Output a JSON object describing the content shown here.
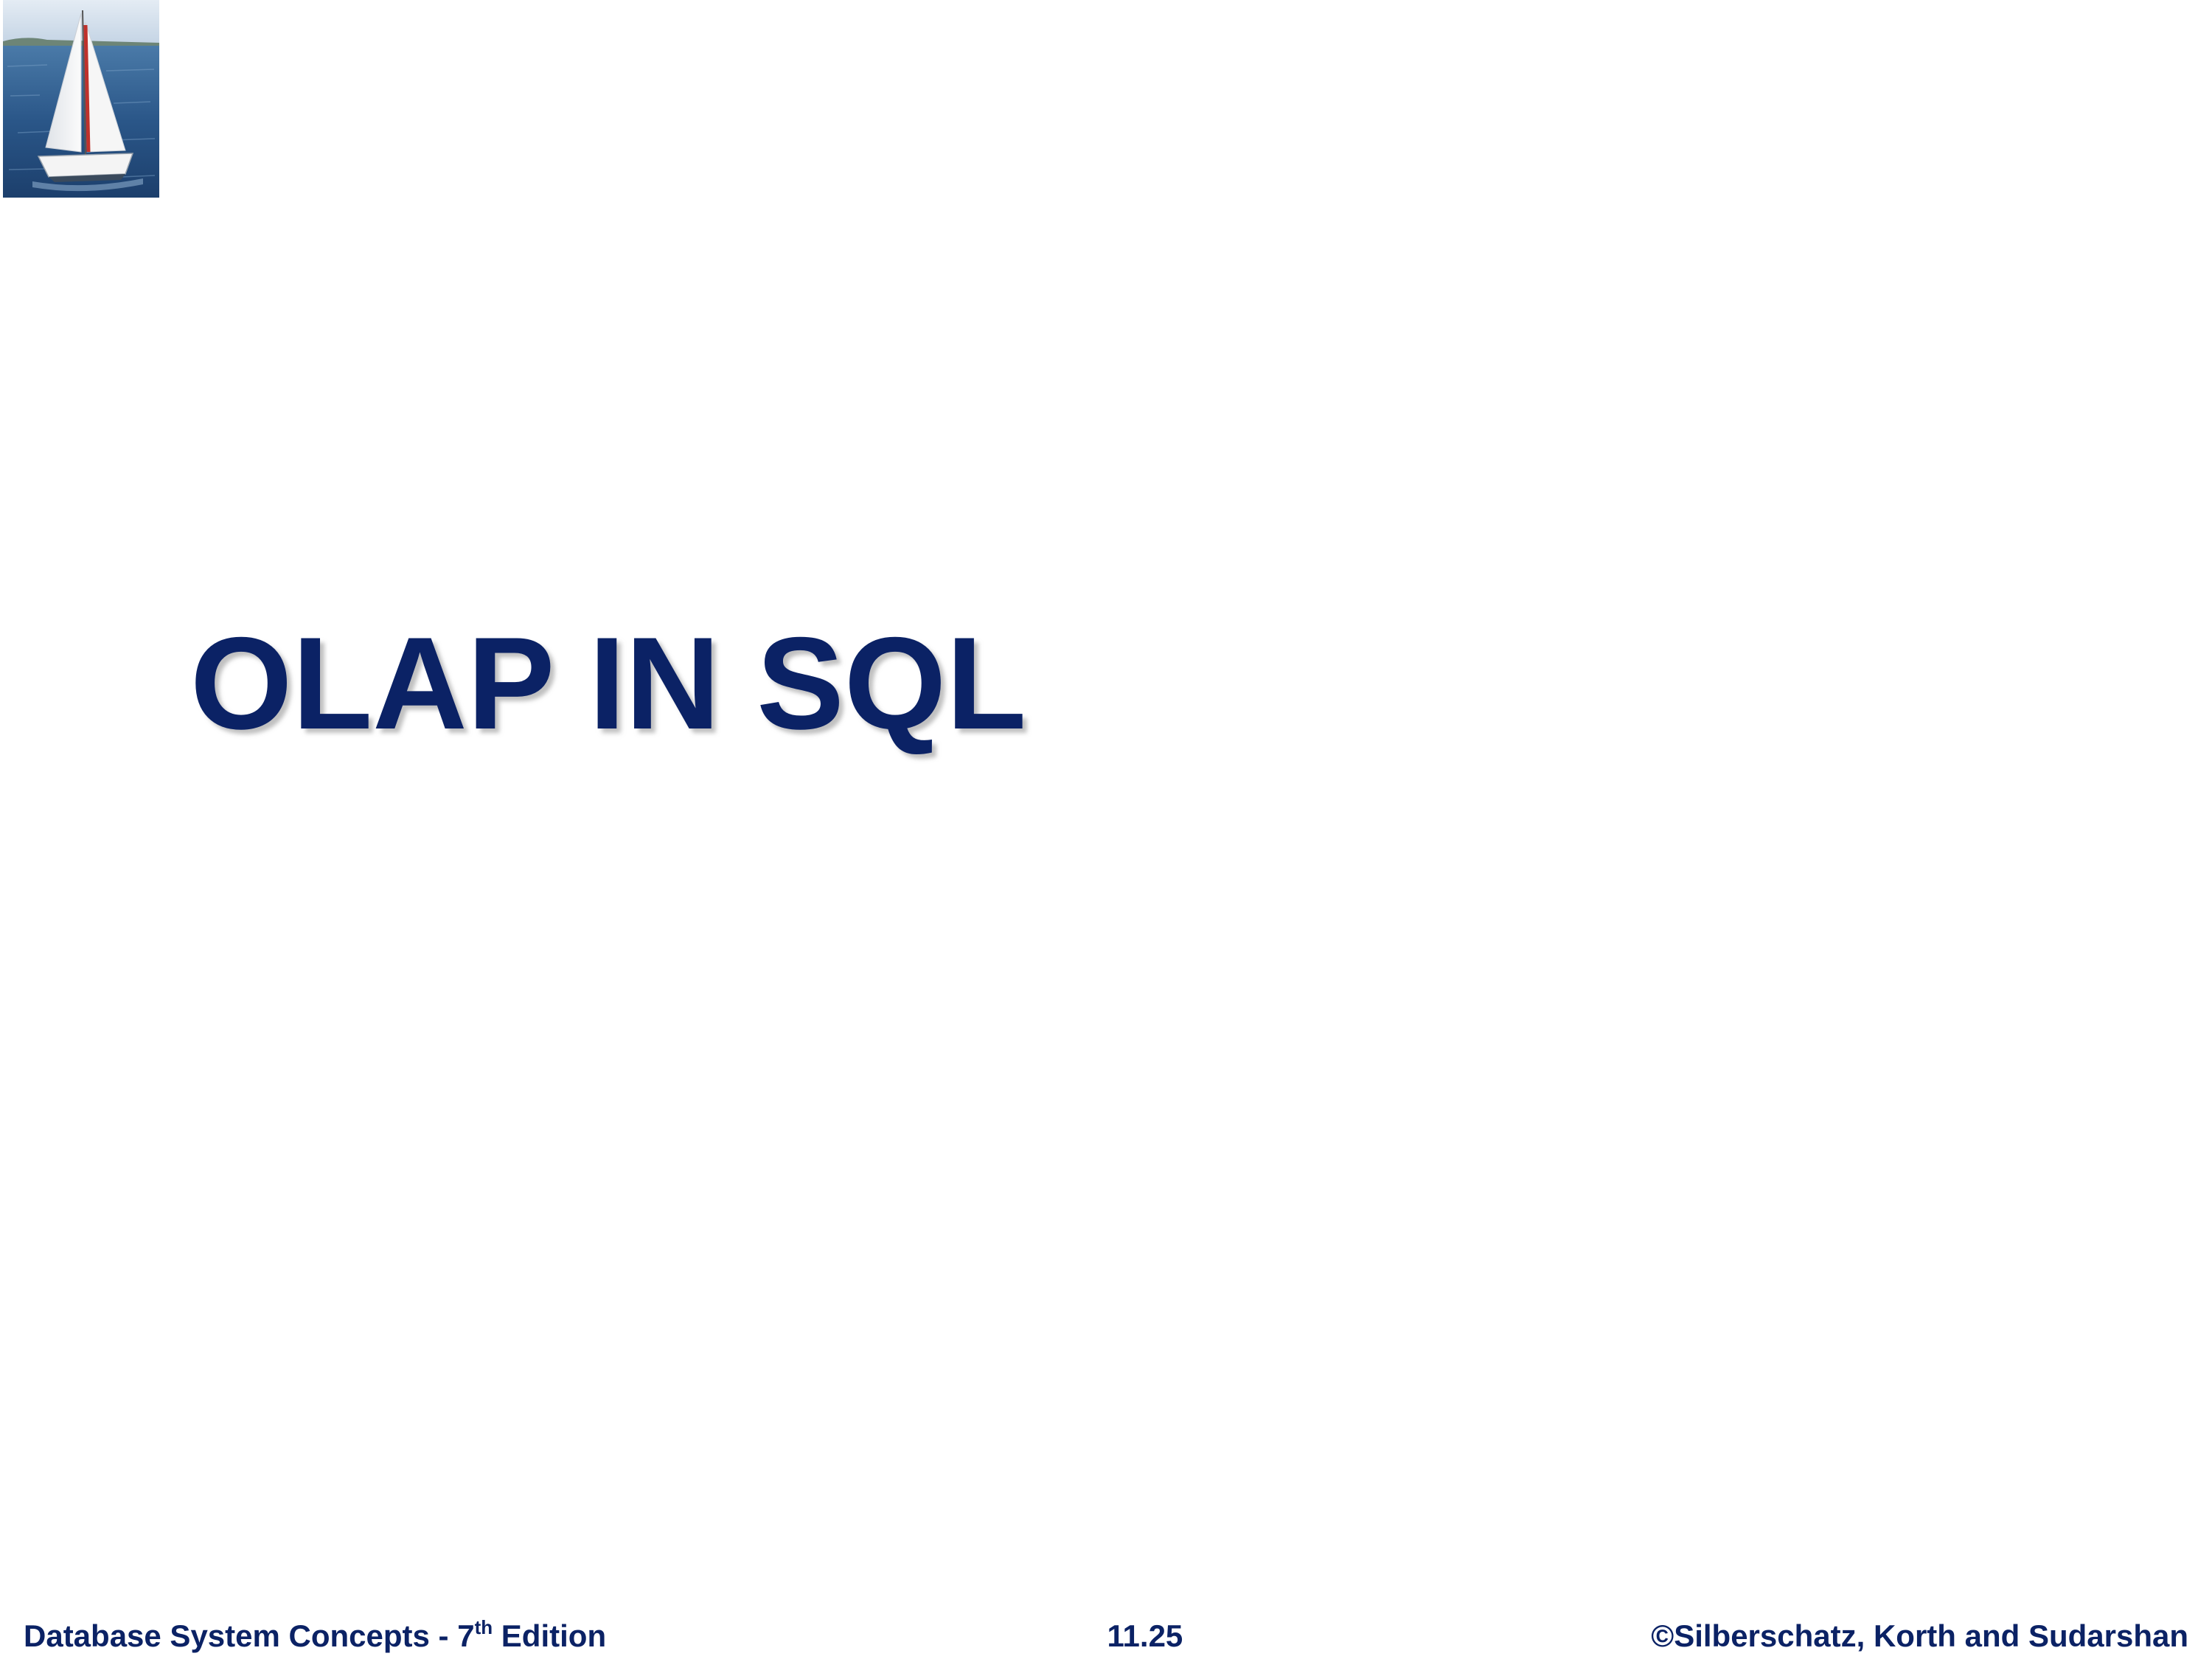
{
  "slide": {
    "title": "OLAP IN SQL",
    "logo": {
      "icon": "sailboat-photo-icon",
      "colors": {
        "sky": "#cfdbe9",
        "sea": "#2c5a8a",
        "sail": "#f2f2f2",
        "mast_accent": "#c0312b"
      }
    }
  },
  "footer": {
    "book_title": "Database System Concepts - 7",
    "edition_suffix": "th",
    "edition_label": " Edition",
    "slide_number": "11.25",
    "copyright": "©Silberschatz, Korth and Sudarshan"
  },
  "colors": {
    "title_text": "#0b2265",
    "footer_text": "#0b2265",
    "background": "#ffffff"
  }
}
